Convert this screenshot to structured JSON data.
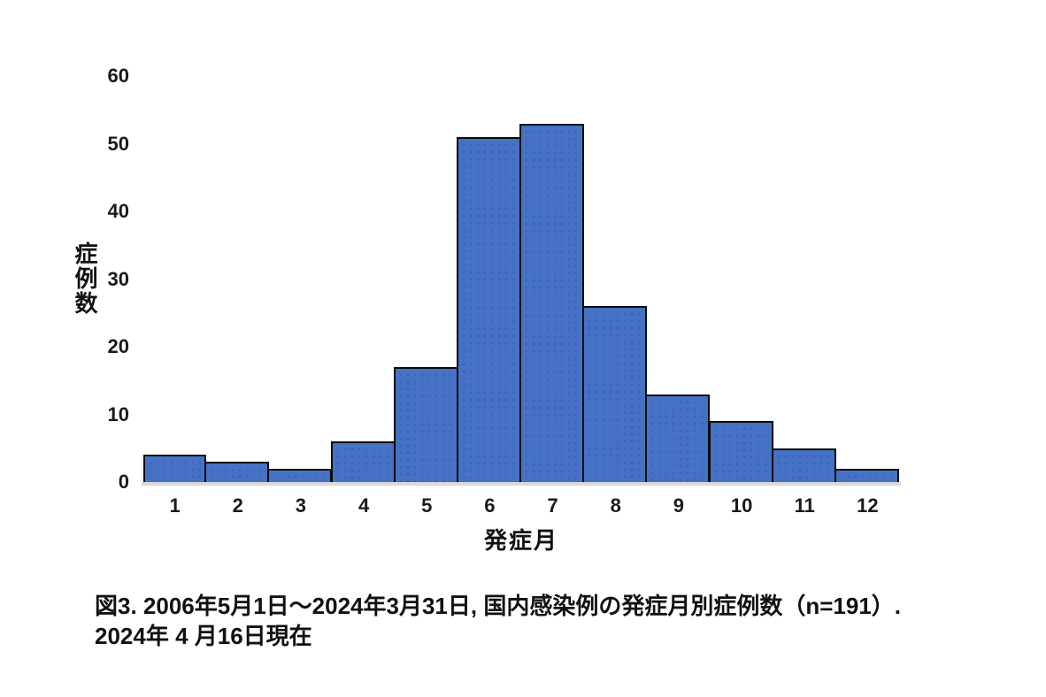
{
  "chart_data": {
    "type": "bar",
    "categories": [
      "1",
      "2",
      "3",
      "4",
      "5",
      "6",
      "7",
      "8",
      "9",
      "10",
      "11",
      "12"
    ],
    "values": [
      4,
      3,
      2,
      6,
      17,
      51,
      53,
      26,
      13,
      9,
      5,
      2
    ],
    "title": "",
    "xlabel": "発症月",
    "ylabel": "症例数",
    "ylim": [
      0,
      60
    ],
    "yticks": [
      0,
      10,
      20,
      30,
      40,
      50,
      60
    ],
    "grid": "off",
    "legend": "none",
    "bar_fill_color": "#4472C4",
    "bar_border_color": "#0b0b0b",
    "baseline_color": "#d9d9d9",
    "n_total": 191
  },
  "caption": {
    "line1": "図3. 2006年5月1日～2024年3月31日, 国内感染例の発症月別症例数（n=191）.",
    "line2": "2024年 4 月16日現在"
  }
}
